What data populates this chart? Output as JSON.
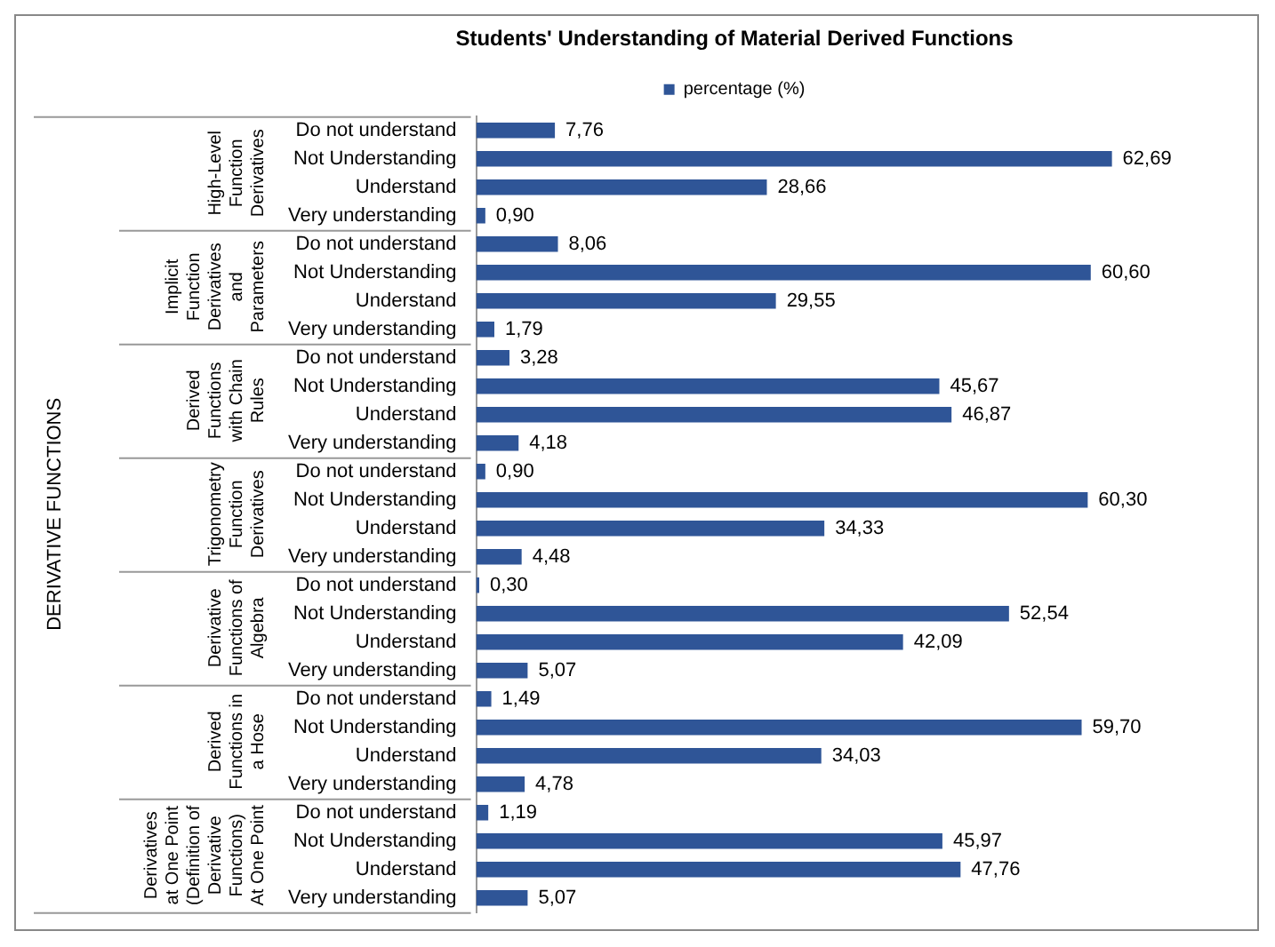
{
  "chart_data": {
    "type": "bar",
    "orientation": "horizontal",
    "title": "Students' Understanding of Material Derived Functions",
    "categories": [
      "Do not understand",
      "Not Understanding",
      "Understand",
      "Very understanding",
      "Do not understand",
      "Not Understanding",
      "Understand",
      "Very understanding",
      "Do not understand",
      "Not Understanding",
      "Understand",
      "Very understanding",
      "Do not understand",
      "Not Understanding",
      "Understand",
      "Very understanding",
      "Do not understand",
      "Not Understanding",
      "Understand",
      "Very understanding",
      "Do not understand",
      "Not Understanding",
      "Understand",
      "Very understanding",
      "Do not understand",
      "Not Understanding",
      "Understand",
      "Very understanding"
    ],
    "annotations": [
      "DERIVATIVE FUNCTIONS",
      "High-Level Function Derivatives",
      "Implicit Function Derivatives and Parameters",
      "Derived Functions with Chain Rules",
      "Trigonometry Function Derivatives",
      "Derivative Functions of Algebra",
      "Derived Functions in a Hose",
      "Derivatives at One Point (Definition of Derivative Functions) At One Point"
    ],
    "series": [
      {
        "name": "percentage (%)",
        "color": "#2f5597",
        "values": [
          7.76,
          62.69,
          28.66,
          0.9,
          8.06,
          60.6,
          29.55,
          1.79,
          3.28,
          45.67,
          46.87,
          4.18,
          0.9,
          60.3,
          34.33,
          4.48,
          0.3,
          52.54,
          42.09,
          5.07,
          1.49,
          59.7,
          34.03,
          4.78,
          1.19,
          45.97,
          47.76,
          5.07
        ],
        "value_labels": [
          "7,76",
          "62,69",
          "28,66",
          "0,90",
          "8,06",
          "60,60",
          "29,55",
          "1,79",
          "3,28",
          "45,67",
          "46,87",
          "4,18",
          "0,90",
          "60,30",
          "34,33",
          "4,48",
          "0,30",
          "52,54",
          "42,09",
          "5,07",
          "1,49",
          "59,70",
          "34,03",
          "4,78",
          "1,19",
          "45,97",
          "47,76",
          "5,07"
        ]
      }
    ],
    "legend": "top",
    "tick_labels": "y"
  }
}
